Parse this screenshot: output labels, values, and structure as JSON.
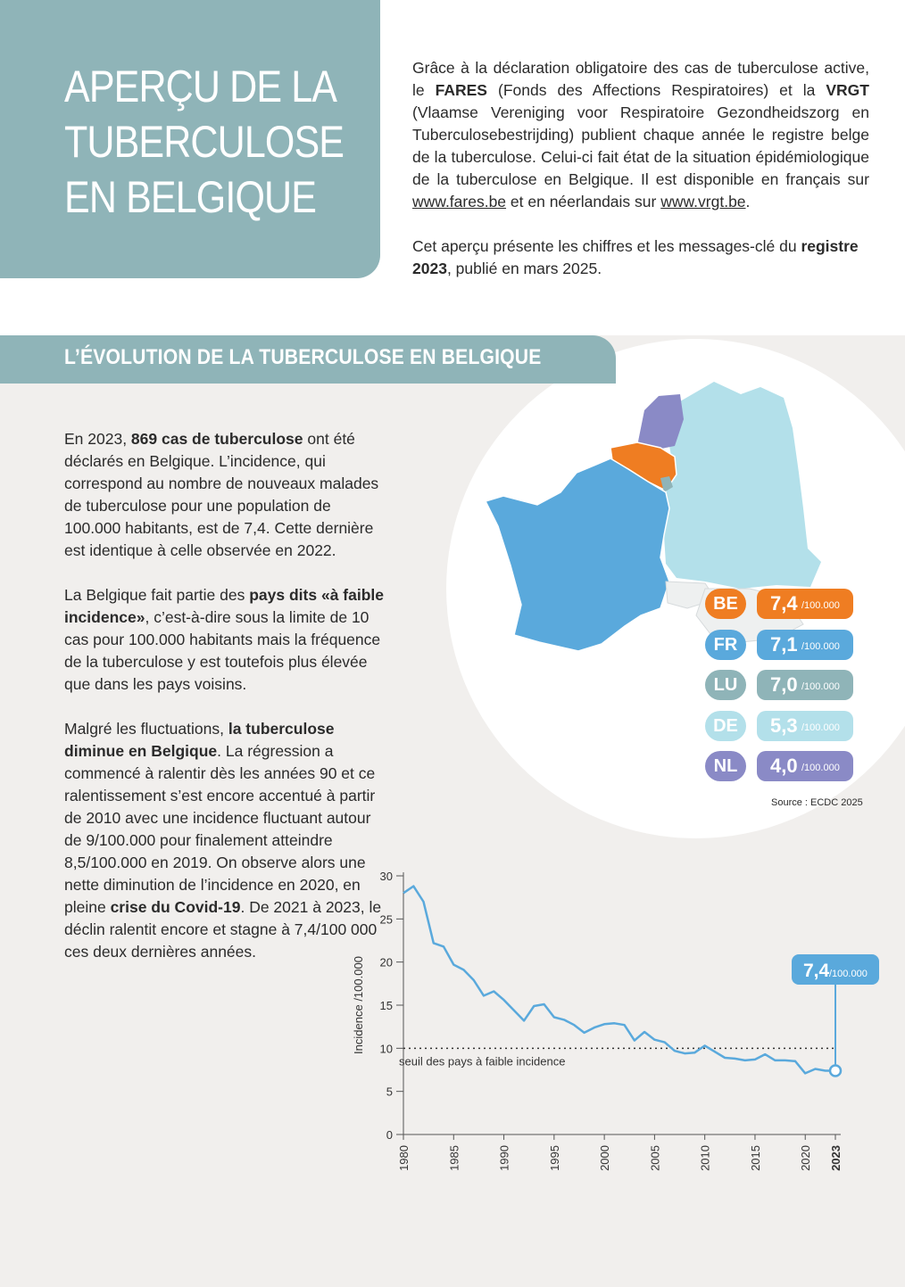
{
  "header": {
    "title_lines": [
      "APERÇU DE LA",
      "TUBERCULOSE",
      "EN BELGIQUE"
    ]
  },
  "intro": {
    "p1_a": "Grâce à la déclaration obligatoire des cas de tuberculose active, le ",
    "p1_fares": "FARES",
    "p1_b": " (Fonds des Affections Respiratoires) et la ",
    "p1_vrgt": "VRGT",
    "p1_c": " (Vlaamse Vereniging voor Respiratoire Gezondheidszorg en Tuberculosebestrijding) publient chaque année le registre belge de la tuberculose. Celui-ci fait état de la situation épidémiologique de la tuberculose en Belgique. Il est disponible en français sur ",
    "p1_link1": "www.fares.be",
    "p1_d": " et en néerlandais sur ",
    "p1_link2": "www.vrgt.be",
    "p1_e": ".",
    "p2_a": "Cet aperçu présente les chiffres et les messages-clé du ",
    "p2_bold": "registre 2023",
    "p2_b": ", publié en mars 2025."
  },
  "section": {
    "title": "L’ÉVOLUTION DE LA TUBERCULOSE EN BELGIQUE"
  },
  "body": {
    "p1_a": "En 2023, ",
    "p1_bold": "869 cas de tuberculose",
    "p1_b": " ont été déclarés en Belgique. L’incidence, qui correspond au nombre de nouveaux malades de tuberculose pour une population de 100.000 habitants, est de 7,4. Cette dernière est identique à celle observée en 2022.",
    "p2_a": "La Belgique fait partie des ",
    "p2_bold": "pays dits «à faible incidence»",
    "p2_b": ", c’est-à-dire sous la limite de 10 cas pour 100.000 habitants mais la fréquence de la tuberculose y est toutefois plus élevée que dans les pays voisins.",
    "p3_a": "Malgré les fluctuations, ",
    "p3_bold1": "la tuberculose diminue en Belgique",
    "p3_b": ". La régression a commencé à ralentir dès les années 90 et ce ralentissement s’est encore accentué à partir de 2010 avec une incidence fluctuant autour de 9/100.000 pour finalement atteindre 8,5/100.000 en 2019. On observe alors une nette diminution de l’incidence en 2020, en pleine ",
    "p3_bold2": "crise du Covid-19",
    "p3_c": ". De 2021 à 2023, le déclin ralentit encore et stagne à 7,4/100 000 ces deux dernières années."
  },
  "country_rates": [
    {
      "code": "BE",
      "value": "7,4",
      "unit": "/100.000",
      "color": "#ef7d22",
      "text_color": "#ffffff"
    },
    {
      "code": "FR",
      "value": "7,1",
      "unit": "/100.000",
      "color": "#5aa9dc",
      "text_color": "#ffffff"
    },
    {
      "code": "LU",
      "value": "7,0",
      "unit": "/100.000",
      "color": "#8fb4b8",
      "text_color": "#ffffff"
    },
    {
      "code": "DE",
      "value": "5,3",
      "unit": "/100.000",
      "color": "#b3e0ea",
      "text_color": "#ffffff"
    },
    {
      "code": "NL",
      "value": "4,0",
      "unit": "/100.000",
      "color": "#8a8ac6",
      "text_color": "#ffffff"
    }
  ],
  "source": "Source : ECDC 2025",
  "chart_data": {
    "type": "line",
    "ylabel": "Incidence /100.000",
    "ylim": [
      0,
      30
    ],
    "yticks": [
      0,
      5,
      10,
      15,
      20,
      25,
      30
    ],
    "xticks": [
      "1980",
      "1985",
      "1990",
      "1995",
      "2000",
      "2005",
      "2010",
      "2015",
      "2020",
      "2023"
    ],
    "x": [
      1980,
      1981,
      1982,
      1983,
      1984,
      1985,
      1986,
      1987,
      1988,
      1989,
      1990,
      1991,
      1992,
      1993,
      1994,
      1995,
      1996,
      1997,
      1998,
      1999,
      2000,
      2001,
      2002,
      2003,
      2004,
      2005,
      2006,
      2007,
      2008,
      2009,
      2010,
      2011,
      2012,
      2013,
      2014,
      2015,
      2016,
      2017,
      2018,
      2019,
      2020,
      2021,
      2022,
      2023
    ],
    "series": [
      {
        "values": [
          28.0,
          28.8,
          27.0,
          22.2,
          21.8,
          19.7,
          19.1,
          17.9,
          16.1,
          16.6,
          15.6,
          14.4,
          13.2,
          14.9,
          15.1,
          13.6,
          13.3,
          12.7,
          11.8,
          12.4,
          12.8,
          12.9,
          12.7,
          10.9,
          11.9,
          11.0,
          10.7,
          9.7,
          9.4,
          9.5,
          10.3,
          9.6,
          8.9,
          8.8,
          8.6,
          8.7,
          9.3,
          8.6,
          8.6,
          8.5,
          7.1,
          7.6,
          7.4,
          7.4
        ],
        "color": "#5aa9dc"
      }
    ],
    "threshold": {
      "value": 10,
      "label": "seuil des pays à faible incidence"
    },
    "callout": {
      "value": "7,4",
      "unit": "/100.000",
      "year": 2023
    }
  }
}
